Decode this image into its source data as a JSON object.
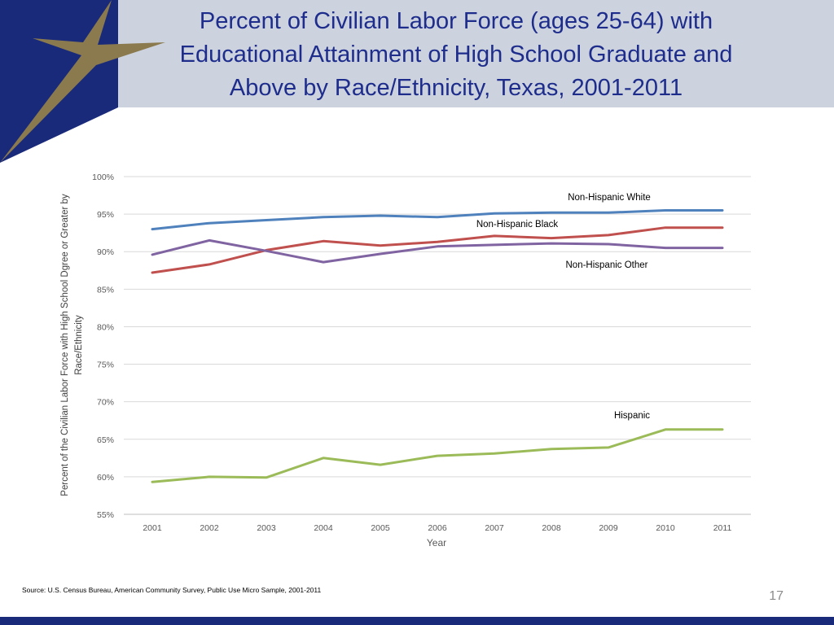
{
  "slide": {
    "title_lines": [
      "Percent of Civilian Labor Force (ages 25-64) with",
      "Educational Attainment of High School Graduate and",
      "Above by Race/Ethnicity, Texas, 2001-2011"
    ],
    "source": "Source: U.S. Census Bureau, American Community Survey, Public Use Micro Sample, 2001-2011",
    "page_number": "17"
  },
  "colors": {
    "header_band": "#ccd3df",
    "corner_blue": "#1a2a7a",
    "star_gold": "#8b7a4e",
    "title_text": "#1e2d8c"
  },
  "chart_data": {
    "type": "line",
    "title": "Percent of Civilian Labor Force (ages 25-64) with Educational Attainment of High School Graduate and Above by Race/Ethnicity, Texas, 2001-2011",
    "xlabel": "Year",
    "ylabel_lines": [
      "Percent of the Civilian Labor Force with High School Dgree or Greater by",
      "Race/Ethnicity"
    ],
    "x": [
      "2001",
      "2002",
      "2003",
      "2004",
      "2005",
      "2006",
      "2007",
      "2008",
      "2009",
      "2010",
      "2011"
    ],
    "yticks": [
      55,
      60,
      65,
      70,
      75,
      80,
      85,
      90,
      95,
      100
    ],
    "ytick_labels": [
      "55%",
      "60%",
      "65%",
      "70%",
      "75%",
      "80%",
      "85%",
      "90%",
      "95%",
      "100%"
    ],
    "ylim": [
      55,
      100
    ],
    "grid": true,
    "legend": "inline labels",
    "series": [
      {
        "name": "Non-Hispanic White",
        "color": "#4f81bd",
        "values": [
          93.0,
          93.8,
          94.2,
          94.6,
          94.8,
          94.6,
          95.1,
          95.2,
          95.2,
          95.5,
          95.5
        ]
      },
      {
        "name": "Non-Hispanic Black",
        "color": "#c0504d",
        "values": [
          87.2,
          88.3,
          90.2,
          91.4,
          90.8,
          91.3,
          92.1,
          91.8,
          92.2,
          93.2,
          93.2
        ]
      },
      {
        "name": "Non-Hispanic Other",
        "color": "#8064a2",
        "values": [
          89.6,
          91.5,
          90.1,
          88.6,
          89.7,
          90.7,
          90.9,
          91.1,
          91.0,
          90.5,
          90.5
        ]
      },
      {
        "name": "Hispanic",
        "color": "#9bbb59",
        "values": [
          59.3,
          60.0,
          59.9,
          62.5,
          61.6,
          62.8,
          63.1,
          63.7,
          63.9,
          66.3,
          66.3
        ]
      }
    ]
  }
}
